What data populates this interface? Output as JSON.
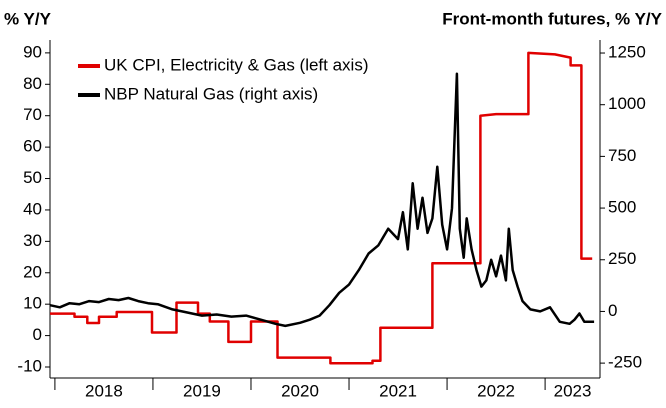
{
  "chart_data": {
    "type": "line",
    "y_label": "% Y/Y",
    "y2_label": "Front-month futures, % Y/Y",
    "xlim": [
      2017.95,
      2023.56
    ],
    "xticks": [
      2018,
      2019,
      2020,
      2021,
      2022,
      2023
    ],
    "ylim": [
      -13.5,
      94.1
    ],
    "yticks": [
      90,
      80,
      70,
      60,
      50,
      40,
      30,
      20,
      10,
      0,
      -10
    ],
    "y2lim": [
      -322,
      1313
    ],
    "y2ticks": [
      1250,
      1000,
      750,
      500,
      250,
      0,
      -250
    ],
    "legend": "top-left",
    "series": [
      {
        "name": "UK CPI, Electricity & Gas (left axis)",
        "color": "#e00000",
        "axis": "y",
        "x": [
          2017.95,
          2018.2,
          2018.2,
          2018.33,
          2018.33,
          2018.45,
          2018.45,
          2018.63,
          2018.63,
          2018.99,
          2018.99,
          2019.24,
          2019.24,
          2019.46,
          2019.46,
          2019.58,
          2019.58,
          2019.77,
          2019.77,
          2020.0,
          2020.0,
          2020.27,
          2020.27,
          2020.81,
          2020.81,
          2021.24,
          2021.24,
          2021.32,
          2021.32,
          2021.85,
          2021.85,
          2022.34,
          2022.34,
          2022.5,
          2022.83,
          2022.83,
          2023.1,
          2023.26,
          2023.26,
          2023.37,
          2023.37,
          2023.48
        ],
        "values": [
          7,
          7,
          6,
          6,
          4,
          4,
          6,
          6,
          7.5,
          7.5,
          1,
          1,
          10.5,
          10.5,
          7,
          7,
          4.5,
          4.5,
          -2,
          -2,
          4.5,
          4.5,
          -7,
          -7,
          -8.8,
          -8.8,
          -8,
          -8,
          2.5,
          2.5,
          23,
          23,
          70,
          70.5,
          70.5,
          90,
          89.5,
          88.5,
          86,
          86,
          24.5,
          24.5
        ]
      },
      {
        "name": "NBP Natural Gas (right axis)",
        "color": "#000000",
        "axis": "y2",
        "x": [
          2017.95,
          2018.05,
          2018.15,
          2018.25,
          2018.35,
          2018.45,
          2018.55,
          2018.65,
          2018.75,
          2018.85,
          2018.95,
          2019.05,
          2019.2,
          2019.35,
          2019.5,
          2019.65,
          2019.8,
          2019.95,
          2020.1,
          2020.25,
          2020.35,
          2020.5,
          2020.6,
          2020.7,
          2020.8,
          2020.9,
          2021.0,
          2021.1,
          2021.2,
          2021.3,
          2021.4,
          2021.5,
          2021.55,
          2021.6,
          2021.65,
          2021.7,
          2021.75,
          2021.8,
          2021.85,
          2021.9,
          2021.95,
          2022.0,
          2022.05,
          2022.1,
          2022.13,
          2022.17,
          2022.2,
          2022.25,
          2022.3,
          2022.35,
          2022.4,
          2022.45,
          2022.5,
          2022.55,
          2022.6,
          2022.63,
          2022.67,
          2022.72,
          2022.77,
          2022.85,
          2022.95,
          2023.05,
          2023.15,
          2023.25,
          2023.3,
          2023.35,
          2023.4,
          2023.5
        ],
        "values": [
          30,
          20,
          40,
          35,
          50,
          45,
          60,
          55,
          65,
          50,
          40,
          35,
          10,
          -5,
          -20,
          -15,
          -25,
          -20,
          -40,
          -60,
          -70,
          -55,
          -40,
          -20,
          30,
          90,
          130,
          200,
          280,
          320,
          400,
          350,
          480,
          300,
          620,
          400,
          550,
          380,
          450,
          700,
          420,
          300,
          500,
          1150,
          400,
          260,
          450,
          300,
          200,
          120,
          150,
          250,
          170,
          270,
          150,
          400,
          200,
          120,
          50,
          10,
          0,
          20,
          -50,
          -60,
          -40,
          -10,
          -50,
          -50
        ]
      }
    ]
  }
}
